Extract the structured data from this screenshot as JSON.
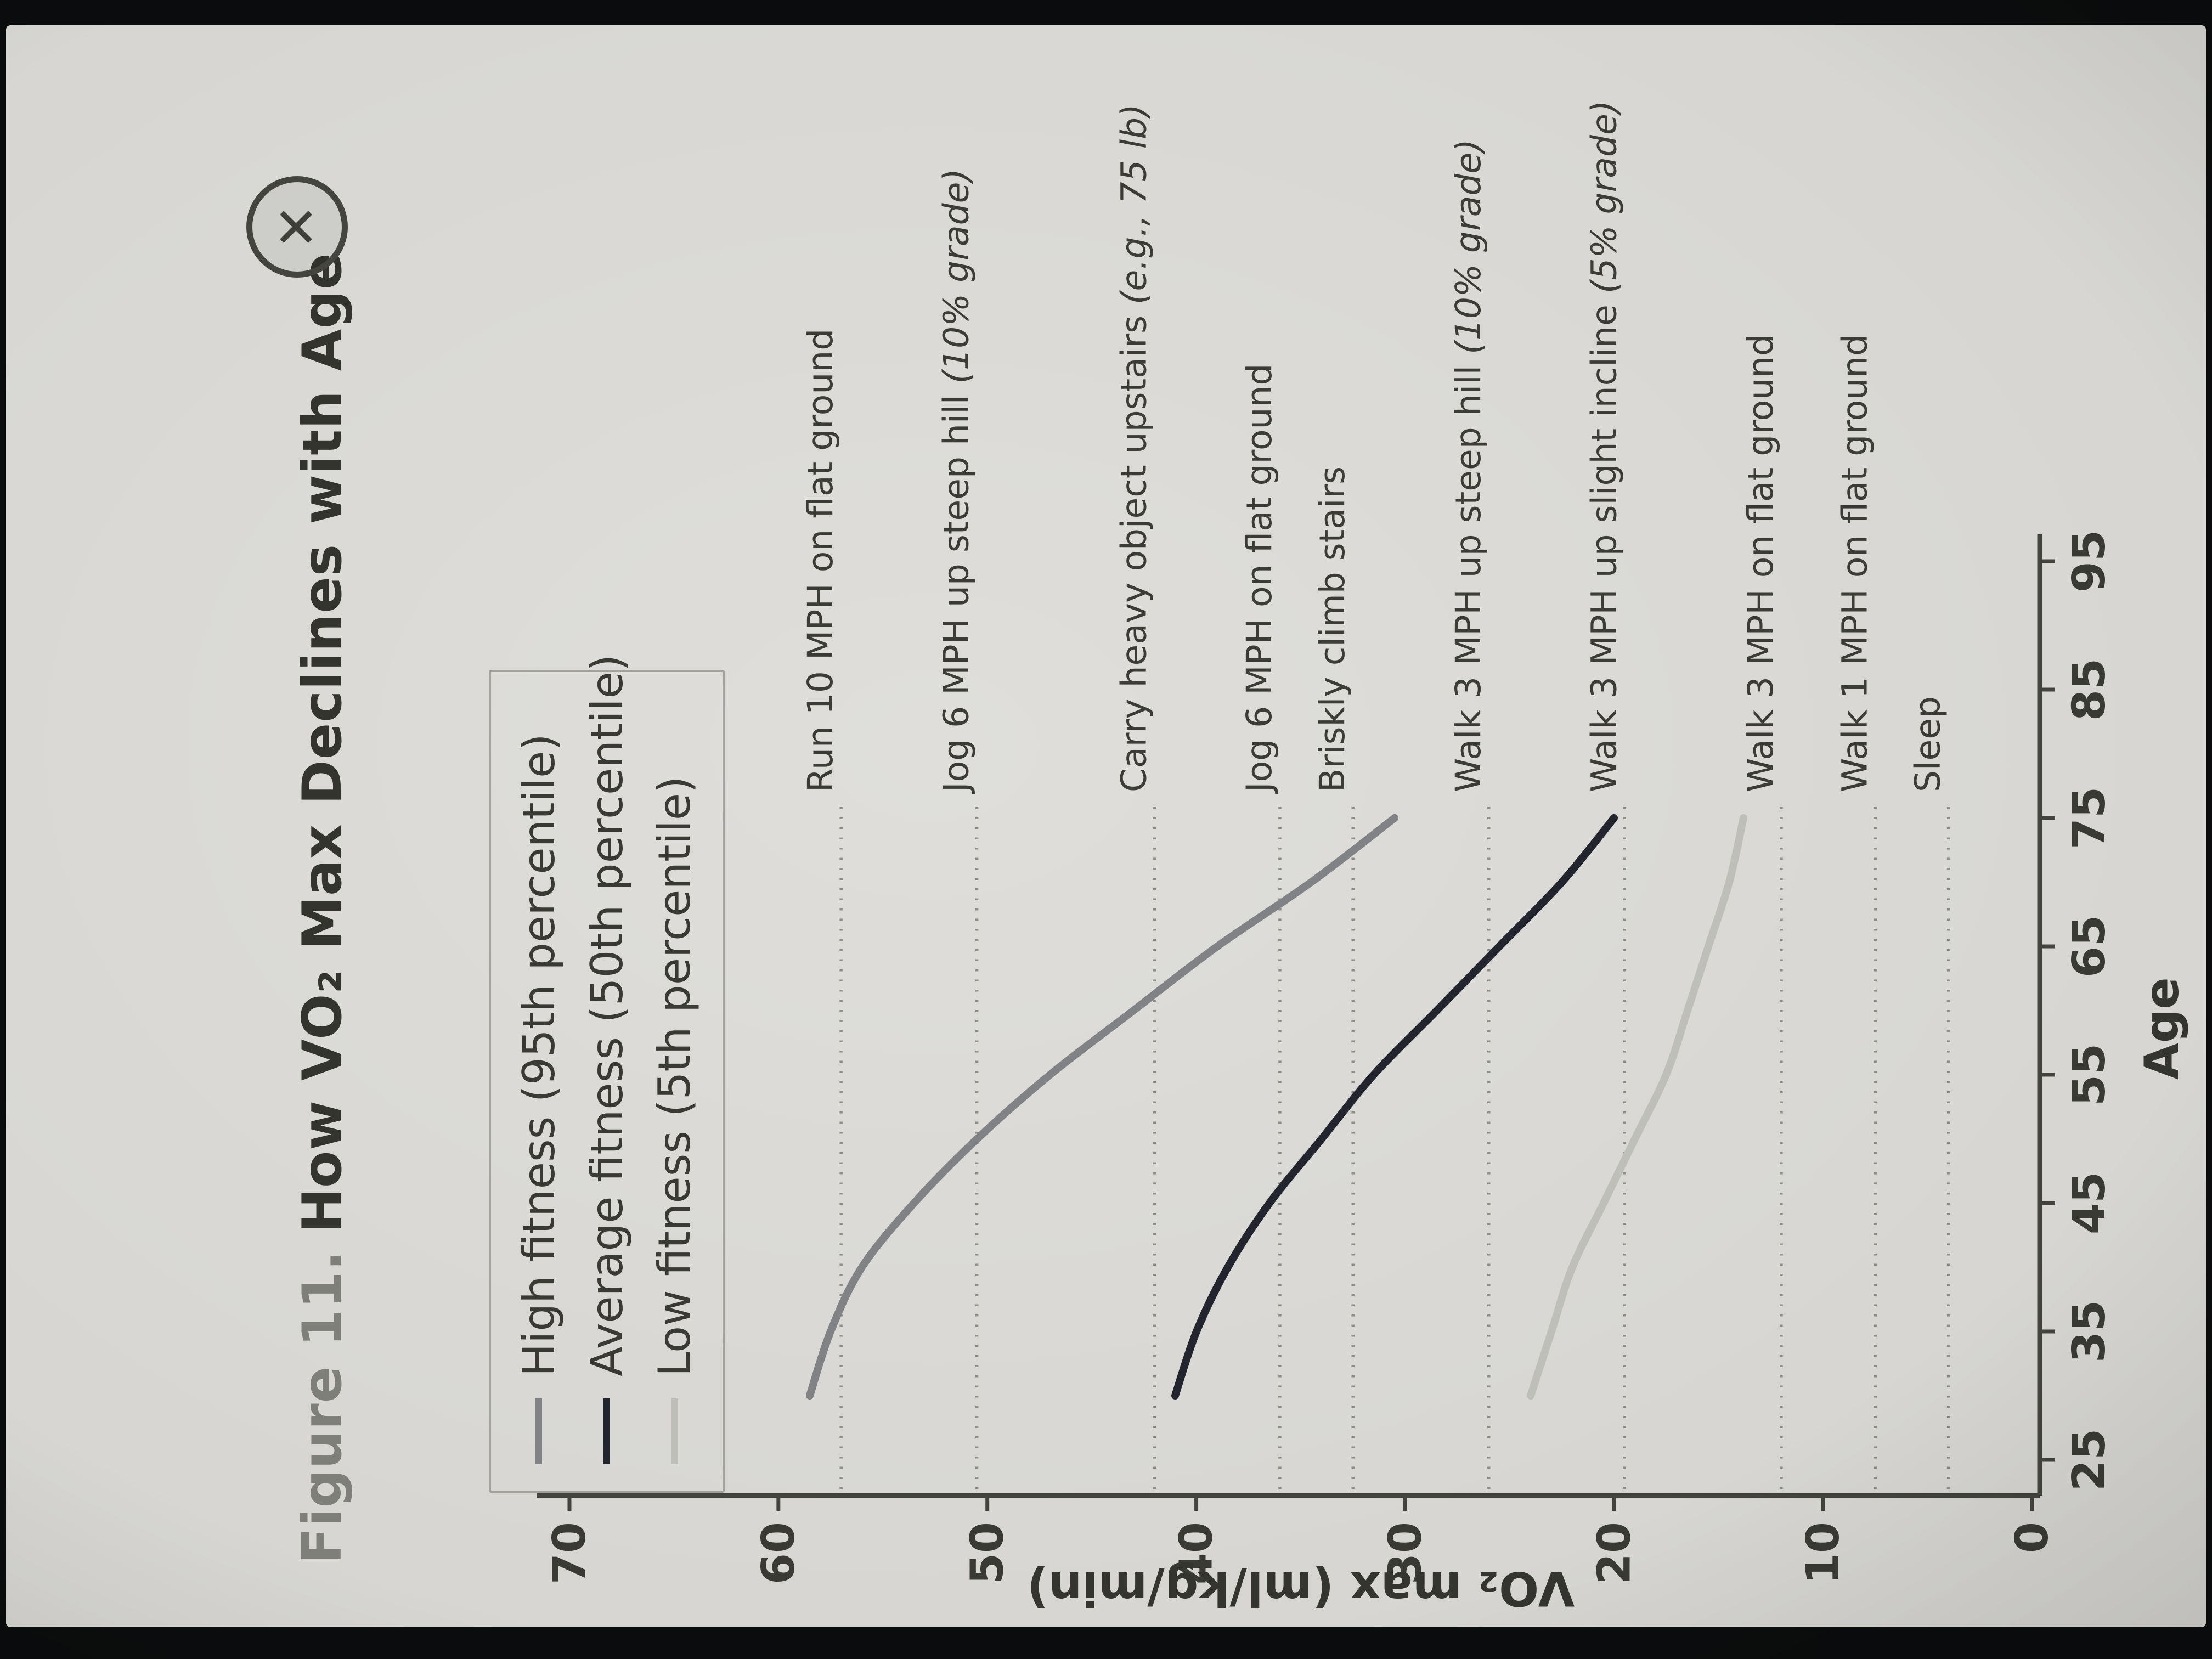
{
  "window": {
    "close_icon": "✕"
  },
  "figure": {
    "label": "Figure 11.",
    "title": "How VO₂ Max Declines with Age"
  },
  "chart_data": {
    "type": "line",
    "title": "Figure 11. How VO₂ Max Declines with Age",
    "xlabel": "Age",
    "ylabel": "VO₂ max (ml/kg/min)",
    "x_ticks": [
      25,
      35,
      45,
      55,
      65,
      75,
      85,
      95
    ],
    "y_ticks": [
      0,
      10,
      20,
      30,
      40,
      50,
      60,
      70
    ],
    "xlim": [
      22,
      100
    ],
    "ylim": [
      0,
      72
    ],
    "grid": false,
    "legend_position": "top-left",
    "series": [
      {
        "name": "High fitness (95th percentile)",
        "color": "#808285",
        "points": [
          [
            30,
            58.5
          ],
          [
            35,
            57.5
          ],
          [
            40,
            56
          ],
          [
            45,
            53.5
          ],
          [
            50,
            50.5
          ],
          [
            55,
            47
          ],
          [
            60,
            43
          ],
          [
            65,
            39
          ],
          [
            70,
            34.5
          ],
          [
            75,
            30.5
          ]
        ]
      },
      {
        "name": "Average fitness (50th percentile)",
        "color": "#22252d",
        "points": [
          [
            30,
            41
          ],
          [
            35,
            40
          ],
          [
            40,
            38.5
          ],
          [
            45,
            36.5
          ],
          [
            50,
            34
          ],
          [
            55,
            31.5
          ],
          [
            60,
            28.5
          ],
          [
            65,
            25.5
          ],
          [
            70,
            22.5
          ],
          [
            75,
            20
          ]
        ]
      },
      {
        "name": "Low fitness (5th percentile)",
        "color": "#bfbfba",
        "points": [
          [
            30,
            24
          ],
          [
            35,
            23
          ],
          [
            40,
            22
          ],
          [
            45,
            20.5
          ],
          [
            50,
            19
          ],
          [
            55,
            17.5
          ],
          [
            60,
            16.5
          ],
          [
            65,
            15.5
          ],
          [
            70,
            14.5
          ],
          [
            75,
            13.8
          ]
        ]
      }
    ],
    "reference_lines": [
      {
        "value": 57,
        "text": "Run 10 MPH on flat ground",
        "italic": ""
      },
      {
        "value": 50.5,
        "text": "Jog 6 MPH up steep hill ",
        "italic": "(10% grade)"
      },
      {
        "value": 42,
        "text": "Carry heavy object upstairs ",
        "italic": "(e.g., 75 lb)"
      },
      {
        "value": 36,
        "text": "Jog 6 MPH on flat ground",
        "italic": ""
      },
      {
        "value": 32.5,
        "text": "Briskly climb stairs",
        "italic": ""
      },
      {
        "value": 26,
        "text": "Walk 3 MPH up steep hill ",
        "italic": "(10% grade)"
      },
      {
        "value": 19.5,
        "text": "Walk 3 MPH up slight incline ",
        "italic": "(5% grade)"
      },
      {
        "value": 12,
        "text": "Walk 3 MPH on flat ground",
        "italic": ""
      },
      {
        "value": 7.5,
        "text": "Walk 1 MPH on flat ground",
        "italic": ""
      },
      {
        "value": 4,
        "text": "Sleep",
        "italic": ""
      }
    ]
  }
}
